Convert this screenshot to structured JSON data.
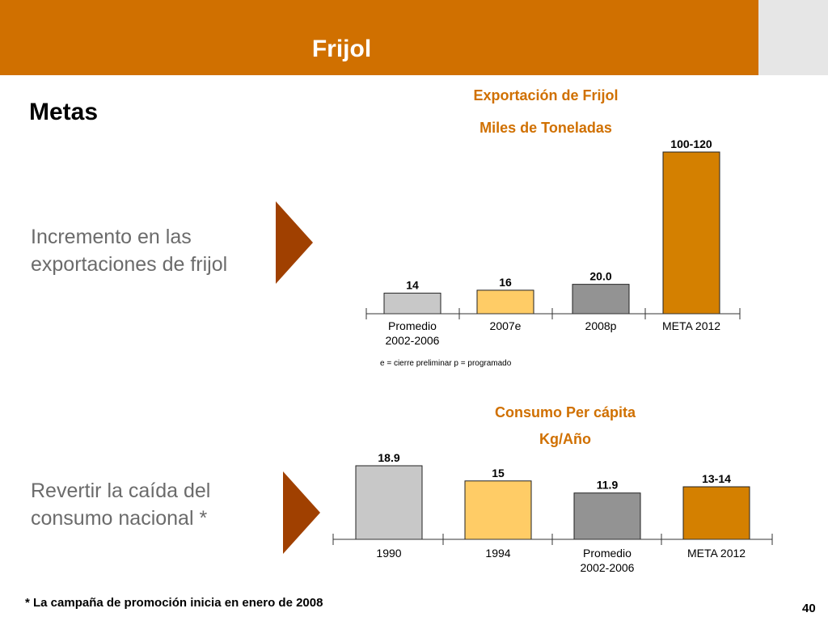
{
  "header": {
    "title": "Frijol"
  },
  "section_title": "Metas",
  "goals": [
    {
      "line1": "Incremento en las",
      "line2": "exportaciones de frijol"
    },
    {
      "line1": "Revertir la caída del",
      "line2": "consumo nacional *"
    }
  ],
  "footnote": "* La campaña de promoción inicia en enero de 2008",
  "page_number": "40",
  "colors": {
    "header": "#d07000",
    "accent_text": "#d07000",
    "arrow": "#a04000",
    "bar_light_gray": "#c8c8c8",
    "bar_light_orange": "#ffcc66",
    "bar_dark_gray": "#939393",
    "bar_orange": "#d48000"
  },
  "chart_data": [
    {
      "type": "bar",
      "title": "Exportación de Frijol",
      "subtitle": "Miles de Toneladas",
      "categories": [
        [
          "Promedio",
          "2002-2006"
        ],
        [
          "2007e"
        ],
        [
          "2008p"
        ],
        [
          "META 2012"
        ]
      ],
      "values": [
        14,
        16,
        20.0,
        110
      ],
      "value_labels": [
        "14",
        "16",
        "20.0",
        "100-120"
      ],
      "bar_colors": [
        "#c8c8c8",
        "#ffcc66",
        "#939393",
        "#d48000"
      ],
      "note": "e = cierre preliminar     p = programado",
      "ylim": [
        0,
        110
      ]
    },
    {
      "type": "bar",
      "title": "Consumo Per cápita",
      "subtitle": "Kg/Año",
      "categories": [
        [
          "1990"
        ],
        [
          "1994"
        ],
        [
          "Promedio",
          "2002-2006"
        ],
        [
          "META 2012"
        ]
      ],
      "values": [
        18.9,
        15,
        11.9,
        13.5
      ],
      "value_labels": [
        "18.9",
        "15",
        "11.9",
        "13-14"
      ],
      "bar_colors": [
        "#c8c8c8",
        "#ffcc66",
        "#939393",
        "#d48000"
      ],
      "ylim": [
        0,
        18.9
      ]
    }
  ]
}
